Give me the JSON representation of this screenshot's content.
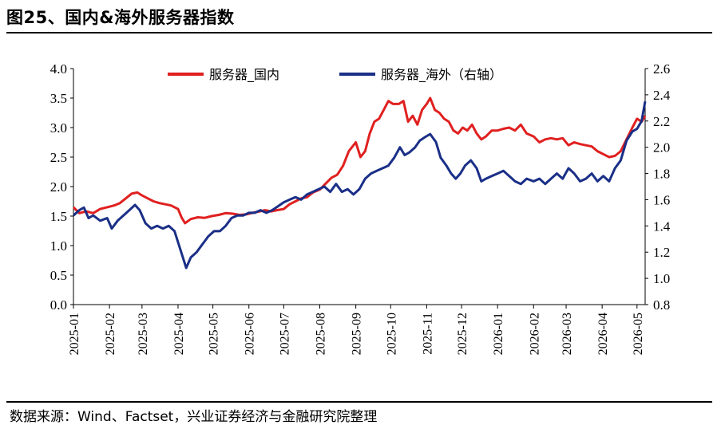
{
  "title": "图25、国内&海外服务器指数",
  "source": "数据来源：Wind、Factset，兴业证券经济与金融研究院整理",
  "chart_data": {
    "type": "line",
    "title": "图25、国内&海外服务器指数",
    "x_tick_labels": [
      "2025-01",
      "2025-02",
      "2025-03",
      "2025-04",
      "2025-05",
      "2025-06",
      "2025-07",
      "2025-08",
      "2025-09",
      "2025-10",
      "2025-11",
      "2025-12",
      "2026-01",
      "2026-02",
      "2026-03",
      "2026-04",
      "2026-05"
    ],
    "y_left": {
      "ylim": [
        0.0,
        4.0
      ],
      "ticks": [
        "0.0",
        "0.5",
        "1.0",
        "1.5",
        "2.0",
        "2.5",
        "3.0",
        "3.5",
        "4.0"
      ]
    },
    "y_right": {
      "ylim": [
        0.8,
        2.6
      ],
      "ticks": [
        "0.8",
        "1.0",
        "1.2",
        "1.4",
        "1.6",
        "1.8",
        "2.0",
        "2.2",
        "2.4",
        "2.6"
      ]
    },
    "legend_position": "top-center",
    "series": [
      {
        "name": "服务器_国内",
        "axis": "left",
        "color": "#e02020",
        "points": [
          [
            "2025-01-01",
            1.65
          ],
          [
            "2025-01-06",
            1.55
          ],
          [
            "2025-01-12",
            1.58
          ],
          [
            "2025-01-18",
            1.55
          ],
          [
            "2025-01-24",
            1.62
          ],
          [
            "2025-01-30",
            1.65
          ],
          [
            "2025-02-05",
            1.68
          ],
          [
            "2025-02-10",
            1.72
          ],
          [
            "2025-02-15",
            1.8
          ],
          [
            "2025-02-20",
            1.88
          ],
          [
            "2025-02-25",
            1.9
          ],
          [
            "2025-03-01",
            1.85
          ],
          [
            "2025-03-06",
            1.8
          ],
          [
            "2025-03-11",
            1.75
          ],
          [
            "2025-03-16",
            1.72
          ],
          [
            "2025-03-21",
            1.7
          ],
          [
            "2025-03-26",
            1.68
          ],
          [
            "2025-04-01",
            1.62
          ],
          [
            "2025-04-04",
            1.48
          ],
          [
            "2025-04-07",
            1.38
          ],
          [
            "2025-04-12",
            1.45
          ],
          [
            "2025-04-18",
            1.48
          ],
          [
            "2025-04-24",
            1.47
          ],
          [
            "2025-04-30",
            1.5
          ],
          [
            "2025-05-06",
            1.52
          ],
          [
            "2025-05-12",
            1.55
          ],
          [
            "2025-05-18",
            1.54
          ],
          [
            "2025-05-24",
            1.52
          ],
          [
            "2025-05-30",
            1.53
          ],
          [
            "2025-06-05",
            1.56
          ],
          [
            "2025-06-10",
            1.58
          ],
          [
            "2025-06-15",
            1.6
          ],
          [
            "2025-06-20",
            1.58
          ],
          [
            "2025-06-25",
            1.6
          ],
          [
            "2025-07-01",
            1.62
          ],
          [
            "2025-07-06",
            1.7
          ],
          [
            "2025-07-11",
            1.75
          ],
          [
            "2025-07-16",
            1.8
          ],
          [
            "2025-07-21",
            1.82
          ],
          [
            "2025-07-26",
            1.9
          ],
          [
            "2025-08-01",
            1.95
          ],
          [
            "2025-08-06",
            2.05
          ],
          [
            "2025-08-11",
            2.15
          ],
          [
            "2025-08-16",
            2.2
          ],
          [
            "2025-08-21",
            2.35
          ],
          [
            "2025-08-26",
            2.6
          ],
          [
            "2025-09-01",
            2.75
          ],
          [
            "2025-09-05",
            2.5
          ],
          [
            "2025-09-09",
            2.6
          ],
          [
            "2025-09-13",
            2.9
          ],
          [
            "2025-09-17",
            3.1
          ],
          [
            "2025-09-21",
            3.15
          ],
          [
            "2025-09-25",
            3.3
          ],
          [
            "2025-09-29",
            3.45
          ],
          [
            "2025-10-03",
            3.4
          ],
          [
            "2025-10-08",
            3.4
          ],
          [
            "2025-10-12",
            3.45
          ],
          [
            "2025-10-16",
            3.1
          ],
          [
            "2025-10-20",
            3.2
          ],
          [
            "2025-10-24",
            3.05
          ],
          [
            "2025-10-28",
            3.3
          ],
          [
            "2025-11-01",
            3.4
          ],
          [
            "2025-11-04",
            3.5
          ],
          [
            "2025-11-08",
            3.3
          ],
          [
            "2025-11-12",
            3.25
          ],
          [
            "2025-11-16",
            3.15
          ],
          [
            "2025-11-20",
            3.1
          ],
          [
            "2025-11-24",
            2.95
          ],
          [
            "2025-11-28",
            2.9
          ],
          [
            "2025-12-02",
            3.0
          ],
          [
            "2025-12-06",
            2.95
          ],
          [
            "2025-12-10",
            3.05
          ],
          [
            "2025-12-14",
            2.9
          ],
          [
            "2025-12-18",
            2.8
          ],
          [
            "2025-12-22",
            2.85
          ],
          [
            "2025-12-27",
            2.95
          ],
          [
            "2026-01-01",
            2.95
          ],
          [
            "2026-01-06",
            2.98
          ],
          [
            "2026-01-11",
            3.0
          ],
          [
            "2026-01-16",
            2.95
          ],
          [
            "2026-01-21",
            3.05
          ],
          [
            "2026-01-26",
            2.9
          ],
          [
            "2026-02-01",
            2.85
          ],
          [
            "2026-02-06",
            2.75
          ],
          [
            "2026-02-11",
            2.8
          ],
          [
            "2026-02-16",
            2.82
          ],
          [
            "2026-02-21",
            2.8
          ],
          [
            "2026-02-26",
            2.82
          ],
          [
            "2026-03-03",
            2.7
          ],
          [
            "2026-03-08",
            2.75
          ],
          [
            "2026-03-13",
            2.72
          ],
          [
            "2026-03-18",
            2.7
          ],
          [
            "2026-03-23",
            2.68
          ],
          [
            "2026-03-28",
            2.6
          ],
          [
            "2026-04-02",
            2.55
          ],
          [
            "2026-04-07",
            2.5
          ],
          [
            "2026-04-12",
            2.52
          ],
          [
            "2026-04-17",
            2.6
          ],
          [
            "2026-04-22",
            2.8
          ],
          [
            "2026-04-27",
            3.0
          ],
          [
            "2026-05-01",
            3.15
          ],
          [
            "2026-05-05",
            3.1
          ],
          [
            "2026-05-08",
            3.2
          ]
        ]
      },
      {
        "name": "服务器_海外（右轴）",
        "axis": "right",
        "color": "#1a2f87",
        "points": [
          [
            "2025-01-01",
            1.48
          ],
          [
            "2025-01-06",
            1.52
          ],
          [
            "2025-01-10",
            1.54
          ],
          [
            "2025-01-14",
            1.46
          ],
          [
            "2025-01-18",
            1.48
          ],
          [
            "2025-01-24",
            1.44
          ],
          [
            "2025-01-30",
            1.46
          ],
          [
            "2025-02-03",
            1.38
          ],
          [
            "2025-02-08",
            1.44
          ],
          [
            "2025-02-13",
            1.48
          ],
          [
            "2025-02-18",
            1.52
          ],
          [
            "2025-02-23",
            1.56
          ],
          [
            "2025-02-27",
            1.52
          ],
          [
            "2025-03-04",
            1.42
          ],
          [
            "2025-03-09",
            1.38
          ],
          [
            "2025-03-14",
            1.4
          ],
          [
            "2025-03-19",
            1.38
          ],
          [
            "2025-03-24",
            1.4
          ],
          [
            "2025-03-29",
            1.36
          ],
          [
            "2025-04-03",
            1.22
          ],
          [
            "2025-04-08",
            1.08
          ],
          [
            "2025-04-12",
            1.16
          ],
          [
            "2025-04-17",
            1.2
          ],
          [
            "2025-04-22",
            1.26
          ],
          [
            "2025-04-27",
            1.32
          ],
          [
            "2025-05-02",
            1.36
          ],
          [
            "2025-05-07",
            1.36
          ],
          [
            "2025-05-12",
            1.4
          ],
          [
            "2025-05-17",
            1.46
          ],
          [
            "2025-05-22",
            1.48
          ],
          [
            "2025-05-27",
            1.48
          ],
          [
            "2025-06-01",
            1.5
          ],
          [
            "2025-06-06",
            1.5
          ],
          [
            "2025-06-11",
            1.52
          ],
          [
            "2025-06-16",
            1.5
          ],
          [
            "2025-06-21",
            1.52
          ],
          [
            "2025-06-26",
            1.55
          ],
          [
            "2025-07-01",
            1.58
          ],
          [
            "2025-07-06",
            1.6
          ],
          [
            "2025-07-11",
            1.62
          ],
          [
            "2025-07-16",
            1.6
          ],
          [
            "2025-07-21",
            1.64
          ],
          [
            "2025-07-26",
            1.66
          ],
          [
            "2025-07-31",
            1.68
          ],
          [
            "2025-08-05",
            1.7
          ],
          [
            "2025-08-10",
            1.66
          ],
          [
            "2025-08-15",
            1.72
          ],
          [
            "2025-08-20",
            1.66
          ],
          [
            "2025-08-25",
            1.68
          ],
          [
            "2025-08-30",
            1.64
          ],
          [
            "2025-09-04",
            1.68
          ],
          [
            "2025-09-09",
            1.76
          ],
          [
            "2025-09-14",
            1.8
          ],
          [
            "2025-09-19",
            1.82
          ],
          [
            "2025-09-24",
            1.84
          ],
          [
            "2025-09-29",
            1.86
          ],
          [
            "2025-10-04",
            1.92
          ],
          [
            "2025-10-09",
            2.0
          ],
          [
            "2025-10-13",
            1.94
          ],
          [
            "2025-10-17",
            1.96
          ],
          [
            "2025-10-22",
            2.0
          ],
          [
            "2025-10-26",
            2.05
          ],
          [
            "2025-10-31",
            2.08
          ],
          [
            "2025-11-04",
            2.1
          ],
          [
            "2025-11-09",
            2.04
          ],
          [
            "2025-11-13",
            1.92
          ],
          [
            "2025-11-18",
            1.86
          ],
          [
            "2025-11-22",
            1.8
          ],
          [
            "2025-11-26",
            1.76
          ],
          [
            "2025-11-30",
            1.8
          ],
          [
            "2025-12-04",
            1.86
          ],
          [
            "2025-12-09",
            1.9
          ],
          [
            "2025-12-14",
            1.84
          ],
          [
            "2025-12-18",
            1.74
          ],
          [
            "2025-12-22",
            1.76
          ],
          [
            "2025-12-27",
            1.78
          ],
          [
            "2026-01-01",
            1.8
          ],
          [
            "2026-01-06",
            1.82
          ],
          [
            "2026-01-11",
            1.78
          ],
          [
            "2026-01-16",
            1.74
          ],
          [
            "2026-01-21",
            1.72
          ],
          [
            "2026-01-26",
            1.76
          ],
          [
            "2026-02-01",
            1.74
          ],
          [
            "2026-02-06",
            1.76
          ],
          [
            "2026-02-11",
            1.72
          ],
          [
            "2026-02-16",
            1.76
          ],
          [
            "2026-02-21",
            1.8
          ],
          [
            "2026-02-26",
            1.76
          ],
          [
            "2026-03-03",
            1.84
          ],
          [
            "2026-03-08",
            1.8
          ],
          [
            "2026-03-13",
            1.74
          ],
          [
            "2026-03-18",
            1.76
          ],
          [
            "2026-03-23",
            1.8
          ],
          [
            "2026-03-28",
            1.74
          ],
          [
            "2026-04-02",
            1.78
          ],
          [
            "2026-04-07",
            1.74
          ],
          [
            "2026-04-12",
            1.84
          ],
          [
            "2026-04-17",
            1.9
          ],
          [
            "2026-04-22",
            2.05
          ],
          [
            "2026-04-27",
            2.12
          ],
          [
            "2026-05-01",
            2.14
          ],
          [
            "2026-05-05",
            2.2
          ],
          [
            "2026-05-08",
            2.35
          ]
        ]
      }
    ]
  }
}
